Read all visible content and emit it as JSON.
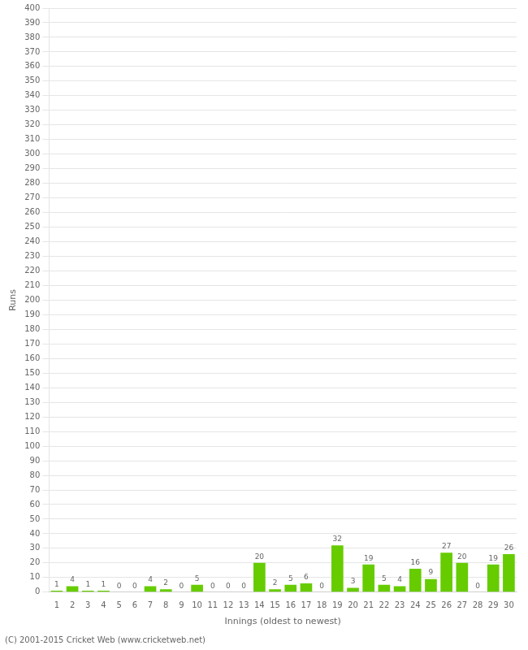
{
  "chart_data": {
    "type": "bar",
    "xlabel": "Innings (oldest to newest)",
    "ylabel": "Runs",
    "categories": [
      1,
      2,
      3,
      4,
      5,
      6,
      7,
      8,
      9,
      10,
      11,
      12,
      13,
      14,
      15,
      16,
      17,
      18,
      19,
      20,
      21,
      22,
      23,
      24,
      25,
      26,
      27,
      28,
      29,
      30
    ],
    "values": [
      1,
      4,
      1,
      1,
      0,
      0,
      4,
      2,
      0,
      5,
      0,
      0,
      0,
      20,
      2,
      5,
      6,
      0,
      32,
      3,
      19,
      5,
      4,
      16,
      9,
      27,
      20,
      0,
      19,
      26
    ],
    "color": "#66cc00",
    "ylim": [
      0,
      400
    ],
    "yticks": [
      0,
      10,
      20,
      30,
      40,
      50,
      60,
      70,
      80,
      90,
      100,
      110,
      120,
      130,
      140,
      150,
      160,
      170,
      180,
      190,
      200,
      210,
      220,
      230,
      240,
      250,
      260,
      270,
      280,
      290,
      300,
      310,
      320,
      330,
      340,
      350,
      360,
      370,
      380,
      390,
      400
    ],
    "grid": true,
    "data_labels": true,
    "annotations": [
      "(C) 2001-2015 Cricket Web (www.cricketweb.net)"
    ]
  }
}
